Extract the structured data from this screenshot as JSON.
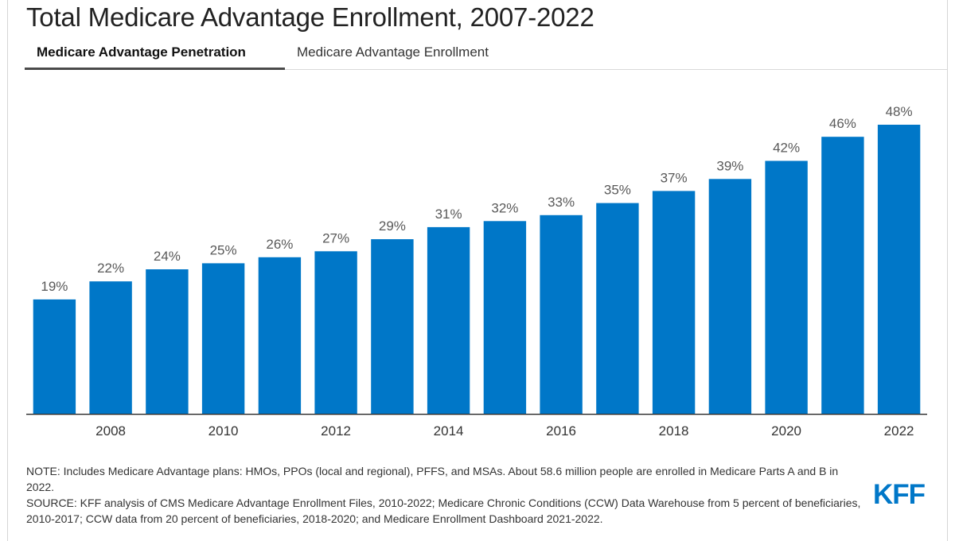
{
  "title": "Total Medicare Advantage Enrollment, 2007-2022",
  "tabs": [
    {
      "label": "Medicare Advantage Penetration",
      "active": true
    },
    {
      "label": "Medicare Advantage Enrollment",
      "active": false
    }
  ],
  "colors": {
    "bar": "#0077c8",
    "accent": "#0077c8",
    "axis": "#333333"
  },
  "chart_data": {
    "type": "bar",
    "title": "",
    "xlabel": "",
    "ylabel": "",
    "x": [
      2007,
      2008,
      2009,
      2010,
      2011,
      2012,
      2013,
      2014,
      2015,
      2016,
      2017,
      2018,
      2019,
      2020,
      2021,
      2022
    ],
    "values": [
      19,
      22,
      24,
      25,
      26,
      27,
      29,
      31,
      32,
      33,
      35,
      37,
      39,
      42,
      46,
      48
    ],
    "data_labels": [
      "19%",
      "22%",
      "24%",
      "25%",
      "26%",
      "27%",
      "29%",
      "31%",
      "32%",
      "33%",
      "35%",
      "37%",
      "39%",
      "42%",
      "46%",
      "48%"
    ],
    "tick_labels": [
      "2008",
      "2010",
      "2012",
      "2014",
      "2016",
      "2018",
      "2020",
      "2022"
    ],
    "ylim": [
      0,
      48
    ],
    "grid": false,
    "legend": "none"
  },
  "notes": {
    "note": "NOTE: Includes Medicare Advantage plans: HMOs, PPOs (local and regional), PFFS, and MSAs. About 58.6 million people are enrolled in Medicare Parts A and B in 2022.",
    "source": "SOURCE: KFF analysis of CMS Medicare Advantage Enrollment Files, 2010-2022; Medicare Chronic Conditions (CCW) Data Warehouse from 5 percent of beneficiaries, 2010-2017; CCW data from 20 percent of beneficiaries, 2018-2020; and Medicare Enrollment Dashboard 2021-2022."
  },
  "logo": "KFF"
}
